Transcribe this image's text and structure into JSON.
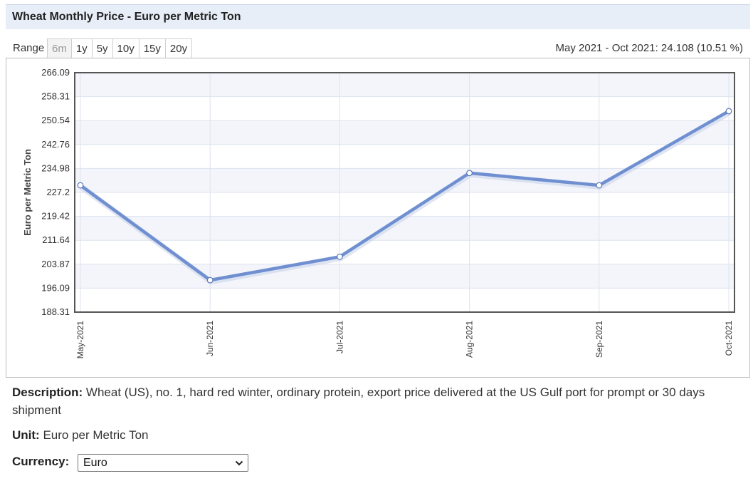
{
  "header": {
    "title": "Wheat Monthly Price - Euro per Metric Ton"
  },
  "range": {
    "label": "Range",
    "tabs": [
      "6m",
      "1y",
      "5y",
      "10y",
      "15y",
      "20y"
    ],
    "active": "6m",
    "summary": "May 2021 - Oct 2021: 24.108 (10.51 %)"
  },
  "chart_data": {
    "type": "line",
    "ylabel": "Euro per Metric Ton",
    "xlabel": "",
    "categories": [
      "May-2021",
      "Jun-2021",
      "Jul-2021",
      "Aug-2021",
      "Sep-2021",
      "Oct-2021"
    ],
    "series": [
      {
        "values": [
          229.5,
          198.7,
          206.3,
          233.5,
          229.5,
          253.6
        ]
      }
    ],
    "yticks": [
      "266.09",
      "258.31",
      "250.54",
      "242.76",
      "234.98",
      "227.2",
      "219.42",
      "211.64",
      "203.87",
      "196.09",
      "188.31"
    ],
    "ylim": [
      188.31,
      266.09
    ],
    "grid": true,
    "line_color": "#6f8fd1"
  },
  "description": {
    "label": "Description:",
    "text": "Wheat (US), no. 1, hard red winter, ordinary protein, export price delivered at the US Gulf port for prompt or 30 days shipment"
  },
  "unit": {
    "label": "Unit:",
    "text": "Euro per Metric Ton"
  },
  "currency": {
    "label": "Currency:",
    "selected": "Euro"
  }
}
